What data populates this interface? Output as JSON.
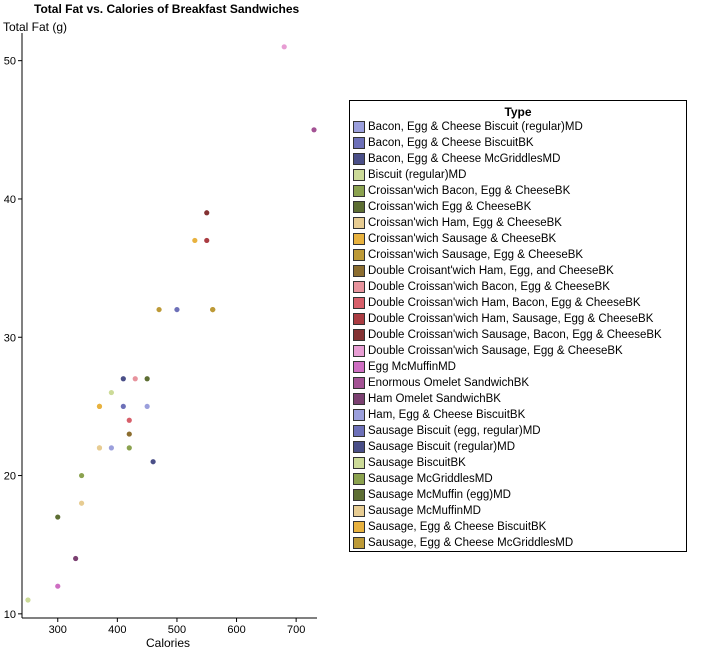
{
  "chart_data": {
    "type": "scatter",
    "title": "Total Fat vs. Calories of Breakfast Sandwiches",
    "xlabel": "Calories",
    "ylabel": "Total Fat (g)",
    "xlim": [
      240,
      735
    ],
    "ylim": [
      9.7,
      52
    ],
    "xticks": [
      300,
      400,
      500,
      600,
      700
    ],
    "yticks": [
      10,
      20,
      30,
      40,
      50
    ],
    "legend_title": "Type",
    "series": [
      {
        "name": "Bacon, Egg & Cheese Biscuit (regular)MD",
        "color": "#9b9fdc",
        "points": [
          [
            450,
            25
          ]
        ]
      },
      {
        "name": "Bacon, Egg & Cheese BiscuitBK",
        "color": "#6d70b8",
        "points": [
          [
            410,
            25
          ]
        ]
      },
      {
        "name": "Bacon, Egg & Cheese McGriddlesMD",
        "color": "#4a4f88",
        "points": [
          [
            460,
            21
          ]
        ]
      },
      {
        "name": "Biscuit (regular)MD",
        "color": "#ccdb98",
        "points": [
          [
            250,
            11
          ]
        ]
      },
      {
        "name": "Croissan'wich Bacon, Egg & CheeseBK",
        "color": "#8ba24f",
        "points": [
          [
            340,
            20
          ]
        ]
      },
      {
        "name": "Croissan'wich Egg & CheeseBK",
        "color": "#5d6e33",
        "points": [
          [
            300,
            17
          ]
        ]
      },
      {
        "name": "Croissan'wich Ham, Egg & CheeseBK",
        "color": "#e7cc92",
        "points": [
          [
            370,
            22
          ],
          [
            340,
            18
          ]
        ]
      },
      {
        "name": "Croissan'wich Sausage & CheeseBK",
        "color": "#e8b23f",
        "points": [
          [
            370,
            25
          ],
          [
            530,
            37
          ]
        ]
      },
      {
        "name": "Croissan'wich Sausage, Egg & CheeseBK",
        "color": "#bd9a37",
        "points": [
          [
            470,
            32
          ],
          [
            560,
            32
          ]
        ]
      },
      {
        "name": "Double Croisant'wich Ham, Egg, and CheeseBK",
        "color": "#8c6d2f",
        "points": [
          [
            420,
            23
          ]
        ]
      },
      {
        "name": "Double Croissan'wich Bacon, Egg & CheeseBK",
        "color": "#e7939d",
        "points": [
          [
            430,
            27
          ]
        ]
      },
      {
        "name": "Double Croissan'wich Ham, Bacon, Egg & CheeseBK",
        "color": "#d75f6a",
        "points": [
          [
            420,
            24
          ]
        ]
      },
      {
        "name": "Double Croissan'wich Ham, Sausage, Egg & CheeseBK",
        "color": "#aa3c42",
        "points": [
          [
            550,
            37
          ]
        ]
      },
      {
        "name": "Double Croissan'wich Sausage, Bacon, Egg & CheeseBK",
        "color": "#843233",
        "points": [
          [
            550,
            39
          ]
        ]
      },
      {
        "name": "Double Croissan'wich Sausage, Egg & CheeseBK",
        "color": "#e79dd3",
        "points": [
          [
            680,
            51
          ]
        ]
      },
      {
        "name": "Egg McMuffinMD",
        "color": "#ce6ec2",
        "points": [
          [
            300,
            12
          ]
        ]
      },
      {
        "name": "Enormous Omelet SandwichBK",
        "color": "#a35294",
        "points": [
          [
            730,
            45
          ]
        ]
      },
      {
        "name": "Ham Omelet SandwichBK",
        "color": "#7b4071",
        "points": [
          [
            330,
            14
          ]
        ]
      },
      {
        "name": "Ham, Egg & Cheese BiscuitBK",
        "color": "#9b9fdc",
        "points": [
          [
            390,
            22
          ]
        ]
      },
      {
        "name": "Sausage Biscuit (egg, regular)MD",
        "color": "#6d70b8",
        "points": [
          [
            500,
            32
          ]
        ]
      },
      {
        "name": "Sausage Biscuit (regular)MD",
        "color": "#4a4f88",
        "points": [
          [
            410,
            27
          ]
        ]
      },
      {
        "name": "Sausage BiscuitBK",
        "color": "#ccdb98",
        "points": [
          [
            390,
            26
          ]
        ]
      },
      {
        "name": "Sausage McGriddlesMD",
        "color": "#8ba24f",
        "points": [
          [
            420,
            22
          ]
        ]
      },
      {
        "name": "Sausage McMuffin (egg)MD",
        "color": "#5d6e33",
        "points": [
          [
            450,
            27
          ]
        ]
      },
      {
        "name": "Sausage McMuffinMD",
        "color": "#e7cc92",
        "points": [
          [
            370,
            22
          ]
        ]
      },
      {
        "name": "Sausage, Egg & Cheese BiscuitBK",
        "color": "#e8b23f",
        "points": [
          [
            370,
            25
          ]
        ]
      },
      {
        "name": "Sausage, Egg & Cheese McGriddlesMD",
        "color": "#bd9a37",
        "points": [
          [
            560,
            32
          ]
        ]
      }
    ]
  }
}
